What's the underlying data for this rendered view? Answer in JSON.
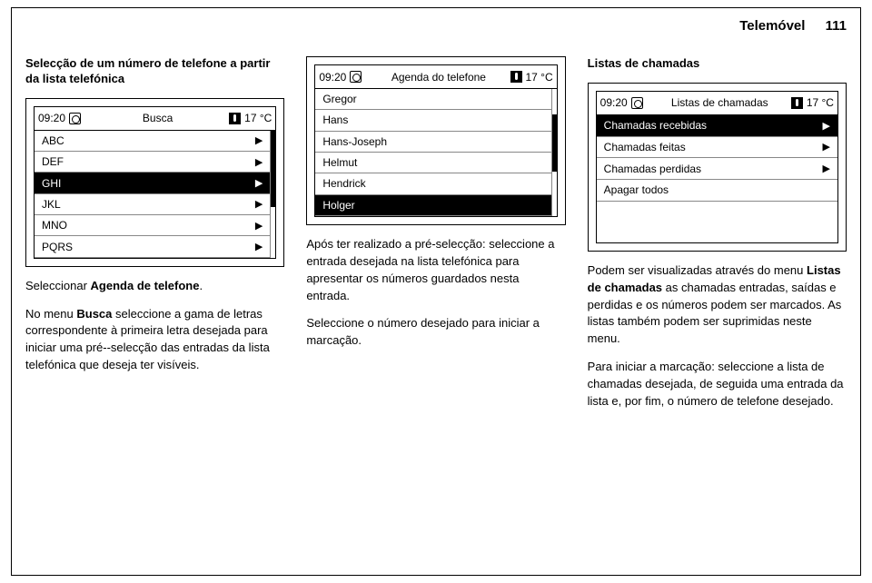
{
  "header": {
    "section": "Telemóvel",
    "page": "111"
  },
  "col1": {
    "title": "Selecção de um número de telefone a partir da lista telefónica",
    "screen": {
      "time": "09:20",
      "title": "Busca",
      "temp": "17 °C",
      "rows": [
        {
          "label": "ABC",
          "selected": false
        },
        {
          "label": "DEF",
          "selected": false
        },
        {
          "label": "GHI",
          "selected": true
        },
        {
          "label": "JKL",
          "selected": false
        },
        {
          "label": "MNO",
          "selected": false
        },
        {
          "label": "PQRS",
          "selected": false
        }
      ],
      "scrollbar": {
        "top_pct": 0,
        "height_pct": 60
      }
    },
    "para1_pre": "Seleccionar ",
    "para1_bold": "Agenda de telefone",
    "para1_post": ".",
    "para2_pre": "No menu ",
    "para2_bold": "Busca",
    "para2_post": " seleccione a gama de letras correspondente à primeira letra desejada para iniciar uma pré-­-selecção das entradas da lista telefónica que deseja ter visíveis."
  },
  "col2": {
    "screen": {
      "time": "09:20",
      "title": "Agenda do telefone",
      "temp": "17 °C",
      "rows": [
        {
          "label": "Gregor",
          "selected": false
        },
        {
          "label": "Hans",
          "selected": false
        },
        {
          "label": "Hans-Joseph",
          "selected": false
        },
        {
          "label": "Helmut",
          "selected": false
        },
        {
          "label": "Hendrick",
          "selected": false
        },
        {
          "label": "Holger",
          "selected": true
        }
      ],
      "scrollbar": {
        "top_pct": 20,
        "height_pct": 45
      }
    },
    "para1": "Após ter realizado a pré-selecção: seleccione a entrada desejada na lista telefónica para apresentar os números guardados nesta entrada.",
    "para2": "Seleccione o número desejado para iniciar a marcação."
  },
  "col3": {
    "title": "Listas de chamadas",
    "screen": {
      "time": "09:20",
      "title": "Listas de chamadas",
      "temp": "17 °C",
      "rows": [
        {
          "label": "Chamadas recebidas",
          "selected": true,
          "arrow": true
        },
        {
          "label": "Chamadas feitas",
          "selected": false,
          "arrow": true
        },
        {
          "label": "Chamadas perdidas",
          "selected": false,
          "arrow": true
        },
        {
          "label": "Apagar todos",
          "selected": false,
          "arrow": false
        }
      ]
    },
    "para1_pre": "Podem ser visualizadas através do menu ",
    "para1_bold": "Listas de chamadas",
    "para1_post": " as chamadas entradas, saídas e perdidas e os números podem ser marcados. As listas também podem ser suprimidas neste menu.",
    "para2": "Para iniciar a marcação: seleccione a lista de chamadas desejada, de seguida uma entrada da lista e, por fim, o número de telefone desejado."
  }
}
